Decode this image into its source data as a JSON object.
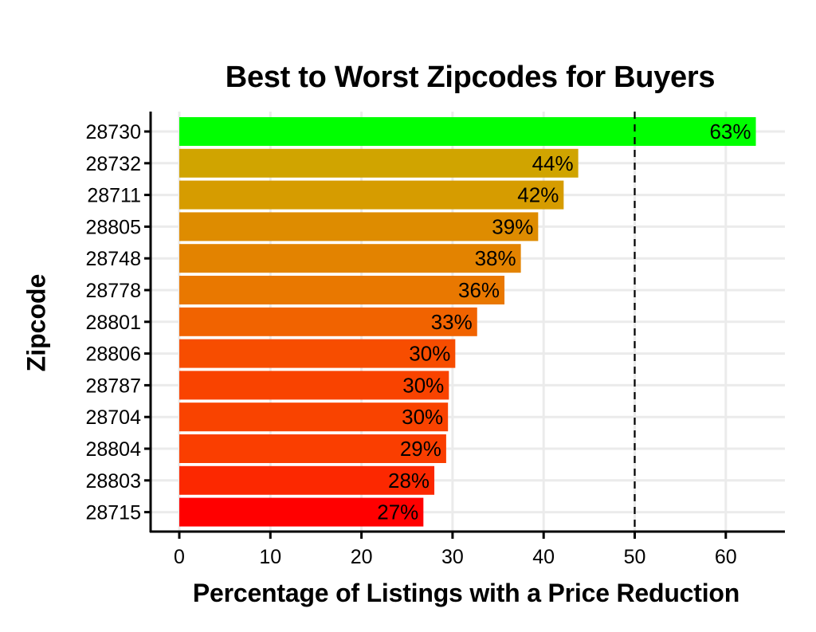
{
  "chart_data": {
    "type": "bar",
    "orientation": "horizontal",
    "title": "Best to Worst Zipcodes for Buyers",
    "xlabel": "Percentage of Listings with a Price Reduction",
    "ylabel": "Zipcode",
    "xlim": [
      -3,
      66.5
    ],
    "xticks": [
      0,
      10,
      20,
      30,
      40,
      50,
      60
    ],
    "grid": true,
    "legend": null,
    "reference_line": {
      "x": 50,
      "style": "dashed",
      "color": "#000000"
    },
    "categories": [
      "28730",
      "28732",
      "28711",
      "28805",
      "28748",
      "28778",
      "28801",
      "28806",
      "28787",
      "28704",
      "28804",
      "28803",
      "28715"
    ],
    "values": [
      63.3,
      43.8,
      42.2,
      39.4,
      37.5,
      35.7,
      32.7,
      30.3,
      29.6,
      29.5,
      29.3,
      28.0,
      26.8
    ],
    "labels": [
      "63%",
      "44%",
      "42%",
      "39%",
      "38%",
      "36%",
      "33%",
      "30%",
      "30%",
      "30%",
      "29%",
      "28%",
      "27%"
    ],
    "colors": [
      "#00FF00",
      "#D0A400",
      "#D69C00",
      "#DE8C00",
      "#E38300",
      "#E97800",
      "#F16300",
      "#F74D00",
      "#F94300",
      "#F94300",
      "#FA3E00",
      "#FC2800",
      "#FF0000"
    ]
  }
}
